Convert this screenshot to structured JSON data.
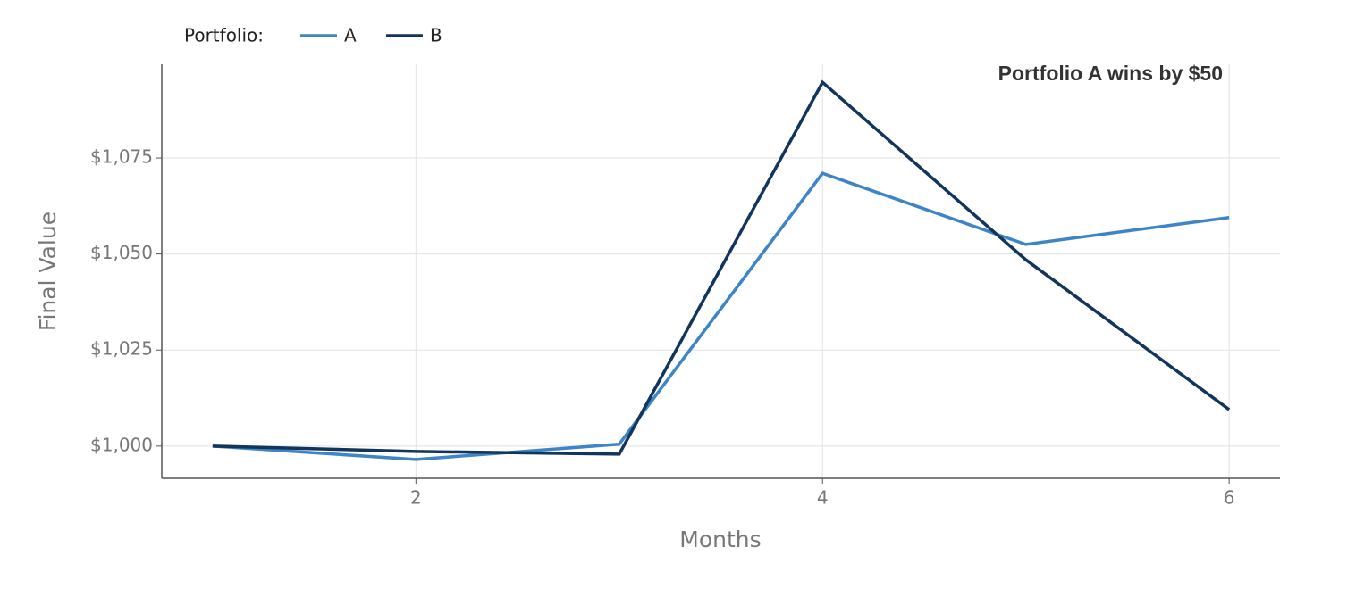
{
  "chart_data": {
    "type": "line",
    "annotation": "Portfolio A  wins by  $50",
    "legend_title": "Portfolio:",
    "x_label": "Months",
    "y_label": "Final Value",
    "x": [
      1,
      2,
      3,
      4,
      5,
      6
    ],
    "series": [
      {
        "name": "A",
        "color": "#3d85c6",
        "values": [
          1000,
          996.5,
          1000.5,
          1071,
          1052.5,
          1059.5
        ]
      },
      {
        "name": "B",
        "color": "#12355b",
        "values": [
          1000,
          998.6,
          997.9,
          1094.7,
          1048.5,
          1009.5
        ]
      }
    ],
    "xlim": [
      0.75,
      6.25
    ],
    "xticks": [
      2,
      4,
      6
    ],
    "ylim": [
      991.6,
      1099.4
    ],
    "yticks": [
      {
        "value": 1000,
        "label": "$1,000"
      },
      {
        "value": 1025,
        "label": "$1,025"
      },
      {
        "value": 1050,
        "label": "$1,050"
      },
      {
        "value": 1075,
        "label": "$1,075"
      }
    ],
    "grid": true,
    "legend": "top-left"
  }
}
